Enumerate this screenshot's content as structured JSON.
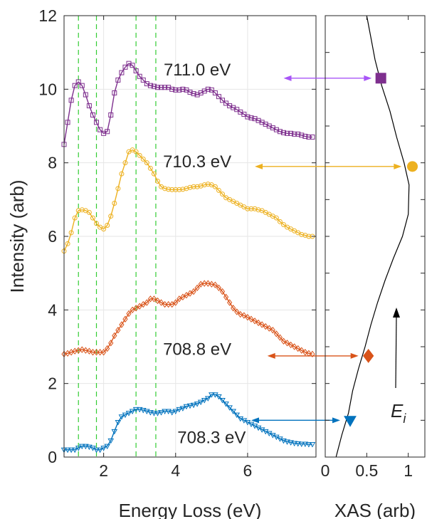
{
  "colors": {
    "blue": "#0072BD",
    "orange": "#D95319",
    "yellow": "#EDB120",
    "purple": "#7E2F8E",
    "purple_arrow": "#A855F7",
    "guide": "#33CC33",
    "axis": "#262626",
    "grid": "#E6E6E6"
  },
  "chart_data": [
    {
      "type": "line",
      "xlabel": "Energy Loss (eV)",
      "ylabel": "Intensity (arb)",
      "xlim": [
        0.9,
        7.9
      ],
      "ylim": [
        0,
        12
      ],
      "xticks": [
        2,
        4,
        6
      ],
      "yticks": [
        0,
        2,
        4,
        6,
        8,
        10,
        12
      ],
      "grid": true,
      "guide_lines_x": [
        1.3,
        1.8,
        2.9,
        3.45
      ],
      "x": [
        0.9,
        1.0,
        1.1,
        1.2,
        1.3,
        1.4,
        1.5,
        1.6,
        1.7,
        1.8,
        1.9,
        2.0,
        2.1,
        2.2,
        2.3,
        2.4,
        2.5,
        2.6,
        2.7,
        2.8,
        2.9,
        3.0,
        3.1,
        3.2,
        3.3,
        3.4,
        3.5,
        3.6,
        3.7,
        3.8,
        3.9,
        4.0,
        4.1,
        4.2,
        4.3,
        4.4,
        4.5,
        4.6,
        4.7,
        4.8,
        4.9,
        5.0,
        5.1,
        5.2,
        5.3,
        5.4,
        5.5,
        5.6,
        5.7,
        5.8,
        5.9,
        6.0,
        6.1,
        6.2,
        6.3,
        6.4,
        6.5,
        6.6,
        6.7,
        6.8,
        6.9,
        7.0,
        7.1,
        7.2,
        7.3,
        7.4,
        7.5,
        7.6,
        7.7,
        7.8
      ],
      "series": [
        {
          "label": "708.3 eV",
          "marker": "triangle-down",
          "values": [
            0.2,
            0.2,
            0.2,
            0.2,
            0.25,
            0.3,
            0.3,
            0.28,
            0.25,
            0.2,
            0.2,
            0.25,
            0.3,
            0.45,
            0.7,
            0.95,
            1.1,
            1.15,
            1.2,
            1.25,
            1.3,
            1.3,
            1.28,
            1.25,
            1.22,
            1.2,
            1.2,
            1.22,
            1.25,
            1.25,
            1.22,
            1.25,
            1.3,
            1.33,
            1.38,
            1.4,
            1.42,
            1.45,
            1.5,
            1.55,
            1.6,
            1.7,
            1.7,
            1.65,
            1.55,
            1.45,
            1.35,
            1.25,
            1.15,
            1.05,
            1.0,
            0.95,
            0.9,
            0.85,
            0.8,
            0.75,
            0.7,
            0.65,
            0.6,
            0.55,
            0.5,
            0.45,
            0.42,
            0.4,
            0.38,
            0.37,
            0.36,
            0.36,
            0.35,
            0.35
          ]
        },
        {
          "label": "708.8 eV",
          "marker": "diamond",
          "values": [
            2.8,
            2.82,
            2.85,
            2.88,
            2.9,
            2.92,
            2.9,
            2.88,
            2.85,
            2.85,
            2.85,
            2.85,
            2.95,
            3.1,
            3.3,
            3.45,
            3.6,
            3.75,
            3.9,
            4.0,
            4.05,
            4.1,
            4.15,
            4.2,
            4.3,
            4.3,
            4.25,
            4.2,
            4.15,
            4.15,
            4.15,
            4.2,
            4.3,
            4.35,
            4.4,
            4.45,
            4.5,
            4.6,
            4.7,
            4.72,
            4.72,
            4.7,
            4.68,
            4.6,
            4.5,
            4.35,
            4.2,
            4.05,
            3.95,
            3.88,
            3.85,
            3.8,
            3.75,
            3.7,
            3.65,
            3.6,
            3.55,
            3.5,
            3.45,
            3.35,
            3.25,
            3.15,
            3.1,
            3.05,
            3.0,
            2.95,
            2.9,
            2.85,
            2.82,
            2.8
          ]
        },
        {
          "label": "710.3 eV",
          "marker": "circle",
          "values": [
            5.6,
            5.8,
            6.1,
            6.5,
            6.7,
            6.72,
            6.7,
            6.65,
            6.5,
            6.35,
            6.25,
            6.2,
            6.3,
            6.55,
            6.9,
            7.3,
            7.7,
            8.0,
            8.3,
            8.35,
            8.3,
            8.2,
            8.1,
            8.0,
            7.85,
            7.7,
            7.5,
            7.35,
            7.3,
            7.28,
            7.27,
            7.27,
            7.27,
            7.28,
            7.3,
            7.33,
            7.35,
            7.35,
            7.37,
            7.4,
            7.42,
            7.4,
            7.35,
            7.25,
            7.15,
            7.05,
            7.0,
            6.95,
            6.9,
            6.85,
            6.8,
            6.75,
            6.75,
            6.75,
            6.72,
            6.7,
            6.65,
            6.6,
            6.55,
            6.5,
            6.4,
            6.32,
            6.25,
            6.2,
            6.15,
            6.1,
            6.05,
            6.03,
            6.0,
            6.0
          ]
        },
        {
          "label": "711.0 eV",
          "marker": "square",
          "values": [
            8.5,
            9.1,
            9.7,
            10.1,
            10.2,
            10.1,
            9.85,
            9.55,
            9.3,
            9.1,
            8.9,
            8.8,
            8.85,
            9.3,
            9.9,
            10.25,
            10.45,
            10.6,
            10.7,
            10.65,
            10.5,
            10.35,
            10.25,
            10.15,
            10.1,
            10.08,
            10.05,
            10.05,
            10.05,
            10.05,
            10.0,
            9.98,
            9.98,
            10.0,
            9.98,
            9.92,
            9.88,
            9.85,
            9.9,
            9.95,
            10.0,
            9.98,
            9.9,
            9.8,
            9.7,
            9.62,
            9.55,
            9.5,
            9.45,
            9.38,
            9.32,
            9.25,
            9.22,
            9.2,
            9.15,
            9.1,
            9.05,
            9.0,
            8.95,
            8.9,
            8.85,
            8.82,
            8.8,
            8.8,
            8.78,
            8.78,
            8.75,
            8.72,
            8.7,
            8.7
          ]
        }
      ],
      "annotations": [
        {
          "text": "708.3 eV",
          "x": 5.0,
          "y": 0.55
        },
        {
          "text": "708.8 eV",
          "x": 4.6,
          "y": 2.95
        },
        {
          "text": "710.3 eV",
          "x": 4.6,
          "y": 8.05
        },
        {
          "text": "711.0 eV",
          "x": 4.6,
          "y": 10.55
        }
      ]
    },
    {
      "type": "line",
      "xlabel": "XAS (arb)",
      "ylabel": "",
      "xlim": [
        0,
        1.2
      ],
      "ylim": [
        0,
        12
      ],
      "xticks": [
        0,
        0.5,
        1
      ],
      "xticklabels": [
        "0",
        "0.5",
        "1"
      ],
      "x": [
        0.13,
        0.2,
        0.28,
        0.33,
        0.4,
        0.48,
        0.55,
        0.63,
        0.72,
        0.82,
        0.93,
        1.0,
        1.01,
        0.95,
        0.86,
        0.78,
        0.68,
        0.6,
        0.55,
        0.5
      ],
      "y": [
        0.0,
        0.6,
        1.2,
        1.8,
        2.4,
        3.0,
        3.6,
        4.2,
        4.8,
        5.4,
        6.0,
        6.6,
        7.4,
        8.0,
        8.7,
        9.4,
        10.1,
        10.8,
        11.4,
        12.0
      ],
      "markers": [
        {
          "series": "708.3 eV",
          "marker": "triangle-down",
          "x": 0.3,
          "y": 1.0
        },
        {
          "series": "708.8 eV",
          "marker": "diamond",
          "x": 0.52,
          "y": 2.75
        },
        {
          "series": "710.3 eV",
          "marker": "circle",
          "x": 1.05,
          "y": 7.9
        },
        {
          "series": "711.0 eV",
          "marker": "square",
          "x": 0.67,
          "y": 10.3
        }
      ],
      "ei_label": "E",
      "ei_subscript": "i"
    }
  ]
}
